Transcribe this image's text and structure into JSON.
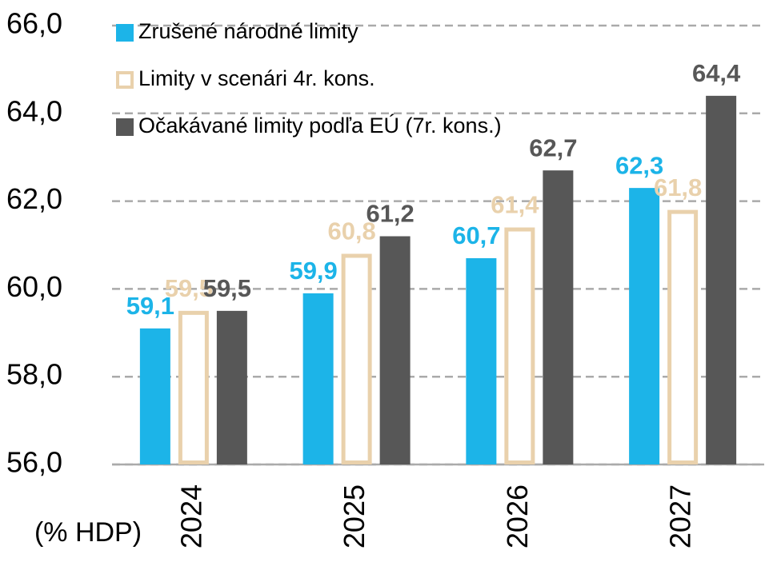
{
  "chart_data": {
    "type": "bar",
    "y_label": "(% HDP)",
    "categories": [
      "2024",
      "2025",
      "2026",
      "2027"
    ],
    "series": [
      {
        "name": "Zrušené národné limity",
        "color": "#1cb4e8",
        "outline": false,
        "values": [
          59.1,
          59.9,
          60.7,
          62.3
        ],
        "value_labels": [
          "59,1",
          "59,9",
          "60,7",
          "62,3"
        ]
      },
      {
        "name": "Limity v scenári 4r. kons.",
        "color": "#e9d1ac",
        "outline": true,
        "values": [
          59.5,
          60.8,
          61.4,
          61.8
        ],
        "value_labels": [
          "59,5",
          "60,8",
          "61,4",
          "61,8"
        ]
      },
      {
        "name": "Očakávané limity podľa EÚ (7r. kons.)",
        "color": "#575757",
        "outline": false,
        "values": [
          59.5,
          61.2,
          62.7,
          64.4
        ],
        "value_labels": [
          "59,5",
          "61,2",
          "62,7",
          "64,4"
        ]
      }
    ],
    "ylim": [
      56,
      66
    ],
    "yticks": [
      {
        "value": 56,
        "label": "56,0"
      },
      {
        "value": 58,
        "label": "58,0"
      },
      {
        "value": 60,
        "label": "60,0"
      },
      {
        "value": 62,
        "label": "62,0"
      },
      {
        "value": 64,
        "label": "64,0"
      },
      {
        "value": 66,
        "label": "66,0"
      }
    ],
    "grid": true,
    "legend": "upper left"
  }
}
